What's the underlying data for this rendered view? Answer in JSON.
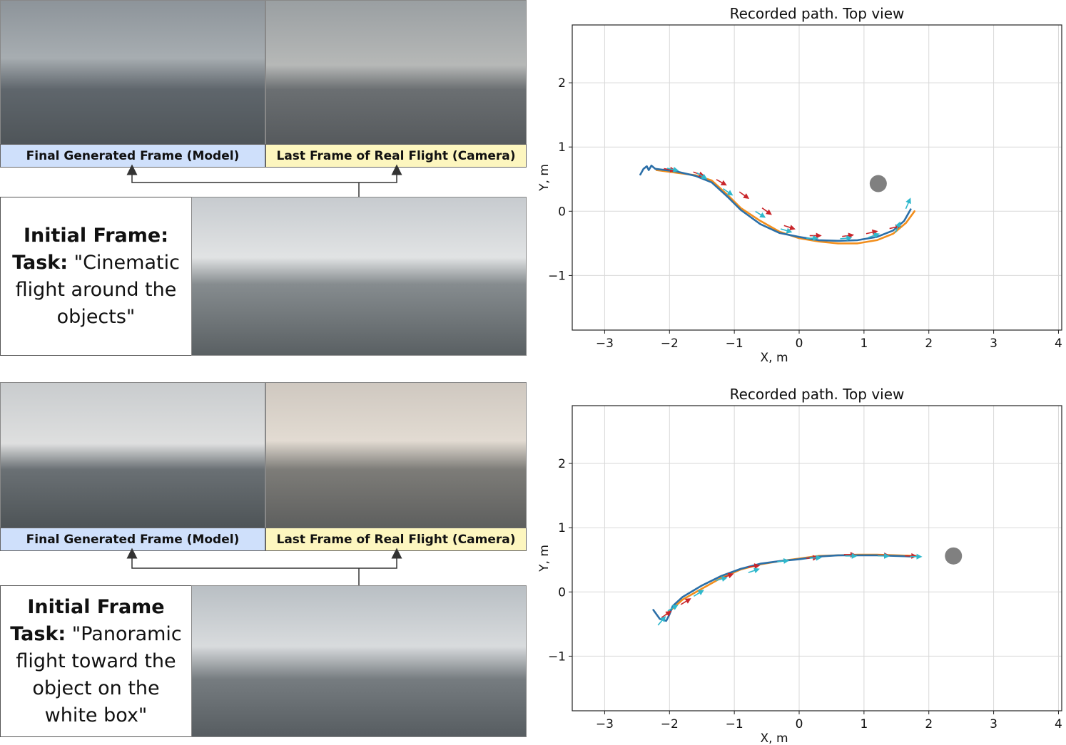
{
  "panels": [
    {
      "model_label": "Final Generated Frame (Model)",
      "real_label": "Last Frame of Real Flight (Camera)",
      "task_heading": "Initial Frame:",
      "task_prefix": "Task:",
      "task_text": " \"Cinematic flight around the objects\""
    },
    {
      "model_label": "Final Generated Frame (Model)",
      "real_label": "Last Frame of Real Flight (Camera)",
      "task_heading": "Initial Frame",
      "task_prefix": "Task:",
      "task_text": " \"Panoramic flight toward the object on the white box\""
    }
  ],
  "colors": {
    "blue": "#2b6fa8",
    "orange": "#f28e1c",
    "red_arrow": "#c9262b",
    "cyan_arrow": "#2fb8cc",
    "obstacle": "#808080"
  },
  "chart_data": [
    {
      "type": "line",
      "title": "Recorded path. Top view",
      "xlabel": "X, m",
      "ylabel": "Y, m",
      "xlim": [
        -3.5,
        4.05
      ],
      "ylim": [
        -1.85,
        2.9
      ],
      "xticks": [
        -3,
        -2,
        -1,
        0,
        1,
        2,
        3,
        4
      ],
      "yticks": [
        -1,
        0,
        1,
        2
      ],
      "grid": true,
      "obstacle": {
        "x": 1.22,
        "y": 0.43
      },
      "series": [
        {
          "color": "orange",
          "x": [
            -2.2,
            -1.9,
            -1.6,
            -1.35,
            -1.1,
            -0.9,
            -0.6,
            -0.3,
            0.0,
            0.3,
            0.6,
            0.9,
            1.2,
            1.45,
            1.65,
            1.78
          ],
          "y": [
            0.64,
            0.6,
            0.56,
            0.48,
            0.25,
            0.05,
            -0.15,
            -0.32,
            -0.42,
            -0.47,
            -0.5,
            -0.5,
            -0.45,
            -0.35,
            -0.18,
            0.0
          ]
        },
        {
          "color": "blue",
          "x": [
            -2.45,
            -2.4,
            -2.35,
            -2.32,
            -2.28,
            -2.22,
            -1.9,
            -1.6,
            -1.35,
            -1.1,
            -0.9,
            -0.6,
            -0.3,
            0.0,
            0.3,
            0.6,
            0.9,
            1.2,
            1.45,
            1.62,
            1.72
          ],
          "y": [
            0.57,
            0.66,
            0.7,
            0.64,
            0.71,
            0.66,
            0.62,
            0.55,
            0.45,
            0.22,
            0.02,
            -0.2,
            -0.34,
            -0.4,
            -0.45,
            -0.46,
            -0.45,
            -0.4,
            -0.3,
            -0.15,
            0.03
          ]
        },
        {
          "color": "red_arrow",
          "marker": "arrow",
          "x": [
            -2.0,
            -1.55,
            -1.2,
            -0.85,
            -0.5,
            -0.15,
            0.25,
            0.75,
            1.12,
            1.48
          ],
          "y": [
            0.65,
            0.58,
            0.45,
            0.25,
            0.0,
            -0.25,
            -0.38,
            -0.38,
            -0.33,
            -0.25
          ]
        },
        {
          "color": "cyan_arrow",
          "marker": "arrow",
          "x": [
            -1.95,
            -1.5,
            -1.1,
            -0.6,
            -0.2,
            0.2,
            0.72,
            1.15,
            1.52,
            1.68
          ],
          "y": [
            0.65,
            0.55,
            0.3,
            -0.05,
            -0.3,
            -0.42,
            -0.42,
            -0.38,
            -0.25,
            0.12
          ]
        }
      ]
    },
    {
      "type": "line",
      "title": "Recorded path. Top view",
      "xlabel": "X, m",
      "ylabel": "Y, m",
      "xlim": [
        -3.5,
        4.05
      ],
      "ylim": [
        -1.85,
        2.9
      ],
      "xticks": [
        -3,
        -2,
        -1,
        0,
        1,
        2,
        3,
        4
      ],
      "yticks": [
        -1,
        0,
        1,
        2
      ],
      "grid": true,
      "obstacle": {
        "x": 2.38,
        "y": 0.56
      },
      "series": [
        {
          "color": "orange",
          "x": [
            -2.05,
            -1.8,
            -1.5,
            -1.2,
            -0.9,
            -0.6,
            -0.3,
            0.0,
            0.3,
            0.6,
            0.9,
            1.2,
            1.5,
            1.8
          ],
          "y": [
            -0.35,
            -0.12,
            0.05,
            0.22,
            0.35,
            0.43,
            0.48,
            0.52,
            0.56,
            0.57,
            0.58,
            0.58,
            0.57,
            0.56
          ]
        },
        {
          "color": "blue",
          "x": [
            -2.25,
            -2.15,
            -2.05,
            -2.0,
            -1.95,
            -1.8,
            -1.5,
            -1.2,
            -0.9,
            -0.6,
            -0.3,
            0.0,
            0.3,
            0.6,
            0.9,
            1.2,
            1.5,
            1.75
          ],
          "y": [
            -0.28,
            -0.42,
            -0.45,
            -0.35,
            -0.22,
            -0.08,
            0.1,
            0.25,
            0.36,
            0.44,
            0.48,
            0.51,
            0.55,
            0.57,
            0.57,
            0.57,
            0.56,
            0.55
          ]
        },
        {
          "color": "red_arrow",
          "marker": "arrow",
          "x": [
            -2.05,
            -1.75,
            -1.1,
            -0.7,
            0.2,
            0.78,
            1.3,
            1.72
          ],
          "y": [
            -0.35,
            -0.15,
            0.25,
            0.4,
            0.53,
            0.58,
            0.57,
            0.56
          ]
        },
        {
          "color": "cyan_arrow",
          "marker": "arrow",
          "x": [
            -2.12,
            -1.95,
            -1.55,
            -1.2,
            -0.7,
            -0.25,
            0.25,
            0.8,
            1.3,
            1.8
          ],
          "y": [
            -0.45,
            -0.25,
            -0.02,
            0.2,
            0.33,
            0.48,
            0.53,
            0.56,
            0.56,
            0.55
          ]
        }
      ]
    }
  ]
}
